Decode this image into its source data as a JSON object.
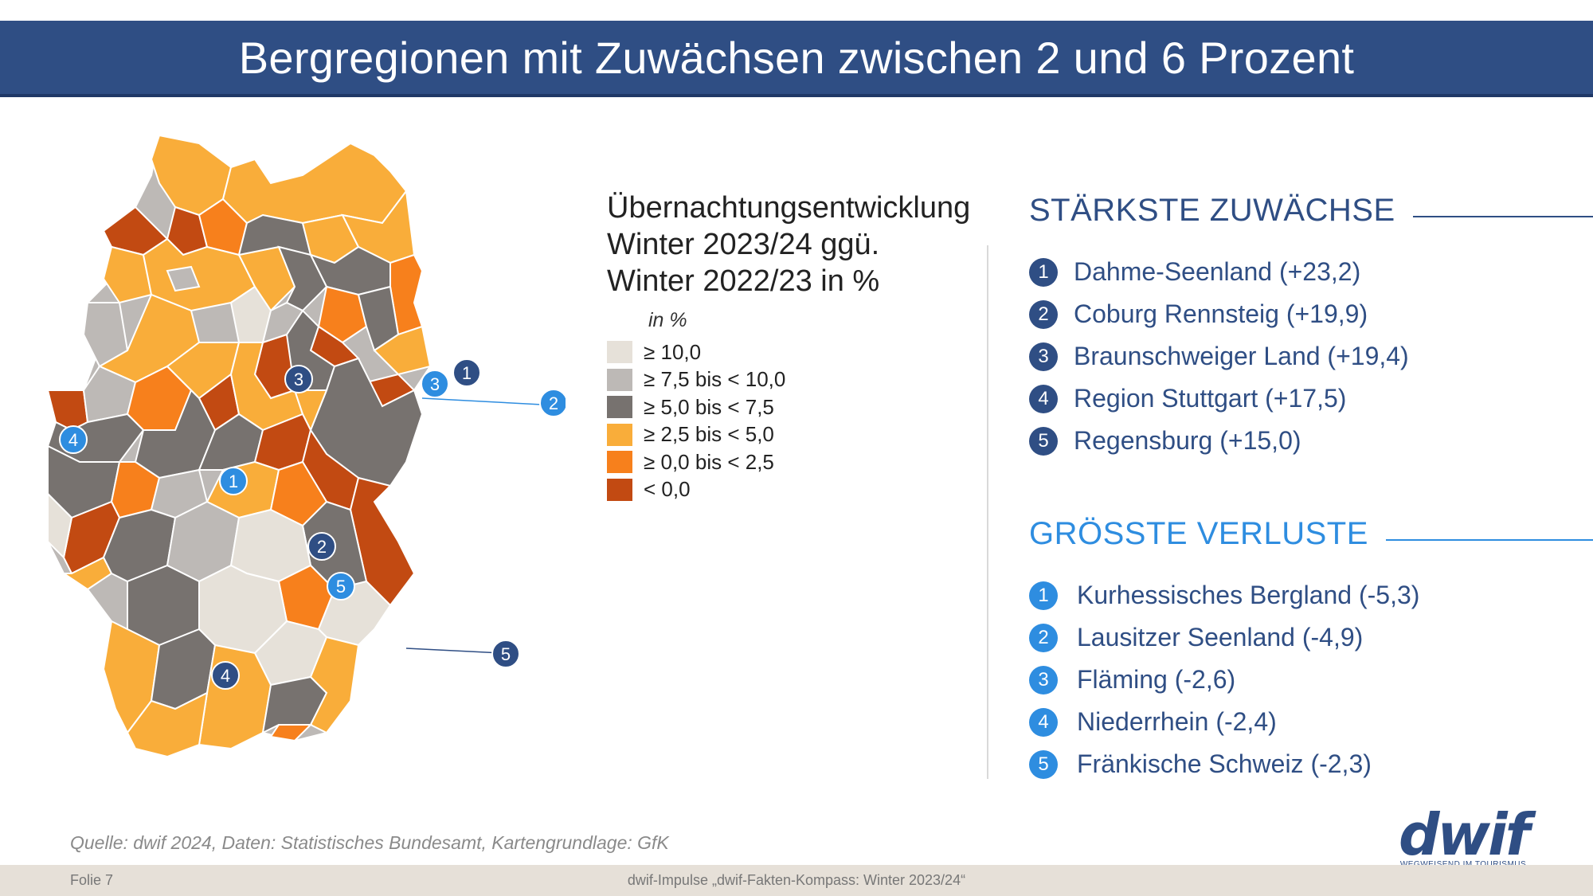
{
  "title": "Bergregionen mit Zuwächsen zwischen 2 und 6 Prozent",
  "legend": {
    "title_lines": [
      "Übernachtungsentwicklung",
      "Winter 2023/24 ggü.",
      "Winter 2022/23 in %"
    ],
    "unit": "in %",
    "items": [
      {
        "label": "≥ 10,0",
        "color": "#e6e1d9"
      },
      {
        "label": "≥ 7,5 bis < 10,0",
        "color": "#bdb9b6"
      },
      {
        "label": "≥ 5,0 bis < 7,5",
        "color": "#77726f"
      },
      {
        "label": "≥ 2,5 bis < 5,0",
        "color": "#f9ad3a"
      },
      {
        "label": "≥ 0,0 bis < 2,5",
        "color": "#f7801c"
      },
      {
        "label": "< 0,0",
        "color": "#c24a12"
      }
    ]
  },
  "gains": {
    "title": "STÄRKSTE ZUWÄCHSE",
    "items": [
      {
        "rank": "1",
        "text": "Dahme-Seenland  (+23,2)"
      },
      {
        "rank": "2",
        "text": "Coburg Rennsteig (+19,9)"
      },
      {
        "rank": "3",
        "text": "Braunschweiger Land (+19,4)"
      },
      {
        "rank": "4",
        "text": "Region Stuttgart (+17,5)"
      },
      {
        "rank": "5",
        "text": "Regensburg (+15,0)"
      }
    ]
  },
  "losses": {
    "title": "GRÖSSTE VERLUSTE",
    "items": [
      {
        "rank": "1",
        "text": "Kurhessisches Bergland (-5,3)"
      },
      {
        "rank": "2",
        "text": "Lausitzer Seenland (-4,9)"
      },
      {
        "rank": "3",
        "text": "Fläming (-2,6)"
      },
      {
        "rank": "4",
        "text": "Niederrhein (-2,4)"
      },
      {
        "rank": "5",
        "text": "Fränkische Schweiz (-2,3)"
      }
    ]
  },
  "map_markers": {
    "gains": [
      "1",
      "2",
      "3",
      "4",
      "5"
    ],
    "losses": [
      "1",
      "2",
      "3",
      "4",
      "5"
    ]
  },
  "source": "Quelle: dwif 2024, Daten: Statistisches Bundesamt, Kartengrundlage: GfK",
  "footer": {
    "slide": "Folie 7",
    "center": "dwif-Impulse „dwif-Fakten-Kompass: Winter 2023/24“"
  },
  "logo": {
    "word": "dwif",
    "tagline": "WEGWEISEND IM TOURISMUS"
  }
}
